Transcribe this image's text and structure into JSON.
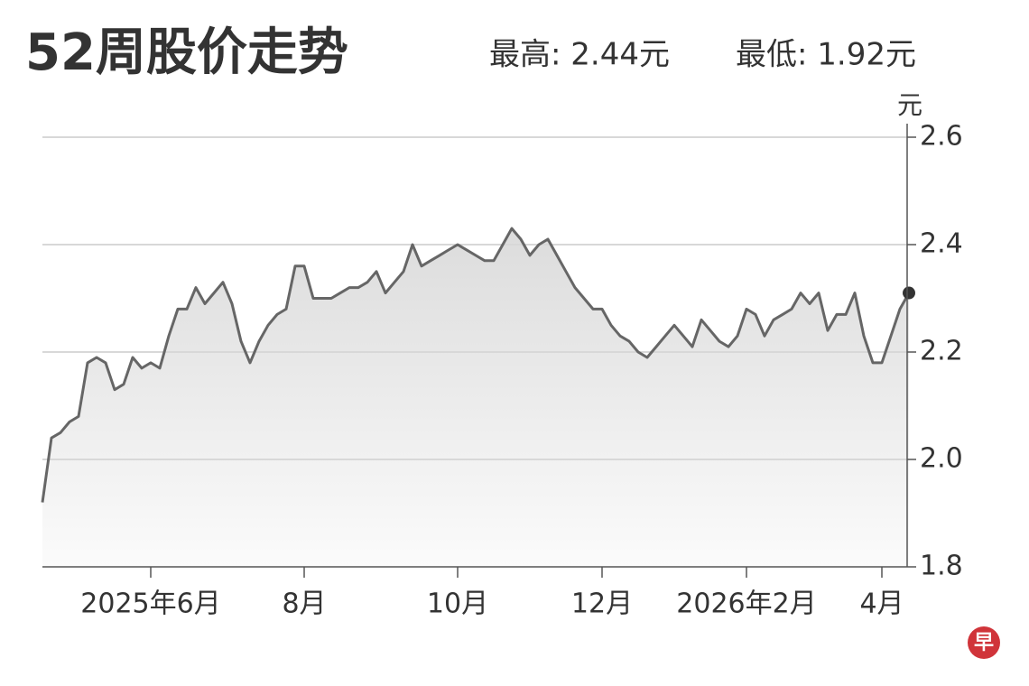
{
  "chart_data": {
    "type": "line",
    "title": "52周股价走势",
    "high_label": "最高: 2.44元",
    "low_label": "最低: 1.92元",
    "y_unit": "元",
    "logo": "早",
    "color": "#666666",
    "values": [
      1.92,
      2.04,
      2.05,
      2.07,
      2.08,
      2.18,
      2.19,
      2.18,
      2.13,
      2.14,
      2.19,
      2.17,
      2.18,
      2.17,
      2.23,
      2.28,
      2.28,
      2.32,
      2.29,
      2.31,
      2.33,
      2.29,
      2.22,
      2.18,
      2.22,
      2.25,
      2.27,
      2.28,
      2.36,
      2.36,
      2.3,
      2.3,
      2.3,
      2.31,
      2.32,
      2.32,
      2.33,
      2.35,
      2.31,
      2.33,
      2.35,
      2.4,
      2.36,
      2.37,
      2.38,
      2.39,
      2.4,
      2.39,
      2.38,
      2.37,
      2.37,
      2.4,
      2.43,
      2.41,
      2.38,
      2.4,
      2.41,
      2.38,
      2.35,
      2.32,
      2.3,
      2.28,
      2.28,
      2.25,
      2.23,
      2.22,
      2.2,
      2.19,
      2.21,
      2.23,
      2.25,
      2.23,
      2.21,
      2.26,
      2.24,
      2.22,
      2.21,
      2.23,
      2.28,
      2.27,
      2.23,
      2.26,
      2.27,
      2.28,
      2.31,
      2.29,
      2.31,
      2.24,
      2.27,
      2.27,
      2.31,
      2.23,
      2.18,
      2.18,
      2.23,
      2.28,
      2.31
    ],
    "xlim": [
      0,
      96
    ],
    "xticks": [
      {
        "value": 12,
        "label": "2025年6月"
      },
      {
        "value": 29,
        "label": "8月"
      },
      {
        "value": 46,
        "label": "10月"
      },
      {
        "value": 62,
        "label": "12月"
      },
      {
        "value": 78,
        "label": "2026年2月"
      },
      {
        "value": 93,
        "label": "4月"
      }
    ],
    "ylim": [
      1.8,
      2.6
    ],
    "yticks": [
      {
        "value": 1.8,
        "label": "1.8"
      },
      {
        "value": 2.0,
        "label": "2.0"
      },
      {
        "value": 2.2,
        "label": "2.2"
      },
      {
        "value": 2.4,
        "label": "2.4"
      },
      {
        "value": 2.6,
        "label": "2.6"
      }
    ],
    "grid": true
  }
}
